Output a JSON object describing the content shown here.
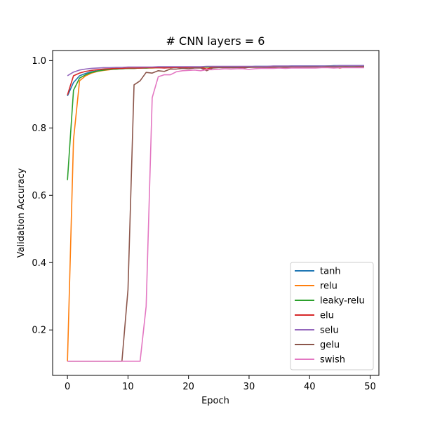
{
  "chart_data": {
    "type": "line",
    "title": "# CNN layers = 6",
    "xlabel": "Epoch",
    "ylabel": "Validation Accuracy",
    "xlim": [
      -2.45,
      51.45
    ],
    "ylim": [
      0.065,
      1.03
    ],
    "xticks": [
      0,
      10,
      20,
      30,
      40,
      50
    ],
    "yticks": [
      0.2,
      0.4,
      0.6,
      0.8,
      1.0
    ],
    "ytick_labels": [
      "0.2",
      "0.4",
      "0.6",
      "0.8",
      "1.0"
    ],
    "grid": false,
    "legend_position": "lower-right",
    "x": [
      0,
      1,
      2,
      3,
      4,
      5,
      6,
      7,
      8,
      9,
      10,
      11,
      12,
      13,
      14,
      15,
      16,
      17,
      18,
      19,
      20,
      21,
      22,
      23,
      24,
      25,
      26,
      27,
      28,
      29,
      30,
      31,
      32,
      33,
      34,
      35,
      36,
      37,
      38,
      39,
      40,
      41,
      42,
      43,
      44,
      45,
      46,
      47,
      48,
      49
    ],
    "series": [
      {
        "name": "tanh",
        "color": "#1f77b4",
        "values": [
          0.895,
          0.935,
          0.955,
          0.962,
          0.967,
          0.97,
          0.972,
          0.974,
          0.975,
          0.976,
          0.977,
          0.977,
          0.978,
          0.978,
          0.979,
          0.979,
          0.979,
          0.98,
          0.98,
          0.98,
          0.98,
          0.981,
          0.981,
          0.981,
          0.981,
          0.982,
          0.982,
          0.982,
          0.982,
          0.982,
          0.982,
          0.983,
          0.983,
          0.983,
          0.983,
          0.983,
          0.983,
          0.984,
          0.984,
          0.984,
          0.984,
          0.984,
          0.984,
          0.984,
          0.985,
          0.985,
          0.985,
          0.985,
          0.985,
          0.985
        ]
      },
      {
        "name": "relu",
        "color": "#ff7f0e",
        "values": [
          0.107,
          0.765,
          0.94,
          0.955,
          0.963,
          0.968,
          0.971,
          0.973,
          0.975,
          0.976,
          0.977,
          0.977,
          0.978,
          0.978,
          0.978,
          0.979,
          0.979,
          0.979,
          0.98,
          0.98,
          0.98,
          0.98,
          0.98,
          0.98,
          0.981,
          0.981,
          0.981,
          0.981,
          0.981,
          0.981,
          0.981,
          0.982,
          0.982,
          0.982,
          0.982,
          0.982,
          0.982,
          0.982,
          0.982,
          0.982,
          0.982,
          0.983,
          0.983,
          0.983,
          0.983,
          0.983,
          0.983,
          0.983,
          0.983,
          0.983
        ]
      },
      {
        "name": "leaky-relu",
        "color": "#2ca02c",
        "values": [
          0.645,
          0.912,
          0.948,
          0.958,
          0.965,
          0.969,
          0.972,
          0.974,
          0.975,
          0.976,
          0.977,
          0.977,
          0.978,
          0.978,
          0.979,
          0.979,
          0.979,
          0.979,
          0.98,
          0.98,
          0.98,
          0.98,
          0.981,
          0.981,
          0.981,
          0.981,
          0.981,
          0.981,
          0.982,
          0.982,
          0.982,
          0.982,
          0.982,
          0.982,
          0.982,
          0.983,
          0.983,
          0.983,
          0.983,
          0.983,
          0.983,
          0.983,
          0.983,
          0.984,
          0.984,
          0.984,
          0.984,
          0.984,
          0.984,
          0.984
        ]
      },
      {
        "name": "elu",
        "color": "#d62728",
        "values": [
          0.898,
          0.955,
          0.963,
          0.968,
          0.971,
          0.973,
          0.975,
          0.976,
          0.977,
          0.977,
          0.978,
          0.978,
          0.978,
          0.979,
          0.979,
          0.979,
          0.978,
          0.979,
          0.98,
          0.979,
          0.98,
          0.98,
          0.98,
          0.975,
          0.98,
          0.98,
          0.981,
          0.98,
          0.98,
          0.981,
          0.98,
          0.981,
          0.981,
          0.981,
          0.981,
          0.98,
          0.981,
          0.981,
          0.982,
          0.981,
          0.981,
          0.982,
          0.98,
          0.981,
          0.982,
          0.978,
          0.982,
          0.98,
          0.982,
          0.982
        ]
      },
      {
        "name": "selu",
        "color": "#9467bd",
        "values": [
          0.955,
          0.966,
          0.972,
          0.975,
          0.977,
          0.978,
          0.979,
          0.979,
          0.98,
          0.98,
          0.981,
          0.981,
          0.981,
          0.981,
          0.981,
          0.982,
          0.982,
          0.982,
          0.982,
          0.982,
          0.982,
          0.982,
          0.982,
          0.983,
          0.983,
          0.983,
          0.983,
          0.983,
          0.983,
          0.983,
          0.983,
          0.983,
          0.983,
          0.983,
          0.984,
          0.984,
          0.984,
          0.984,
          0.984,
          0.984,
          0.984,
          0.984,
          0.984,
          0.984,
          0.984,
          0.985,
          0.985,
          0.985,
          0.985,
          0.985
        ]
      },
      {
        "name": "gelu",
        "color": "#8c564b",
        "values": [
          0.107,
          0.107,
          0.107,
          0.107,
          0.107,
          0.107,
          0.107,
          0.107,
          0.107,
          0.107,
          0.32,
          0.928,
          0.94,
          0.965,
          0.963,
          0.97,
          0.968,
          0.975,
          0.975,
          0.977,
          0.976,
          0.978,
          0.978,
          0.97,
          0.978,
          0.979,
          0.979,
          0.979,
          0.979,
          0.978,
          0.98,
          0.98,
          0.98,
          0.979,
          0.98,
          0.98,
          0.98,
          0.981,
          0.98,
          0.981,
          0.981,
          0.981,
          0.981,
          0.982,
          0.981,
          0.981,
          0.982,
          0.981,
          0.982,
          0.982
        ]
      },
      {
        "name": "swish",
        "color": "#e377c2",
        "values": [
          0.107,
          0.107,
          0.107,
          0.107,
          0.107,
          0.107,
          0.107,
          0.107,
          0.107,
          0.107,
          0.107,
          0.107,
          0.107,
          0.27,
          0.89,
          0.952,
          0.958,
          0.958,
          0.967,
          0.97,
          0.971,
          0.972,
          0.97,
          0.973,
          0.973,
          0.974,
          0.976,
          0.975,
          0.976,
          0.976,
          0.974,
          0.976,
          0.977,
          0.977,
          0.977,
          0.978,
          0.977,
          0.978,
          0.978,
          0.978,
          0.978,
          0.978,
          0.979,
          0.979,
          0.978,
          0.979,
          0.979,
          0.979,
          0.979,
          0.979
        ]
      }
    ]
  }
}
